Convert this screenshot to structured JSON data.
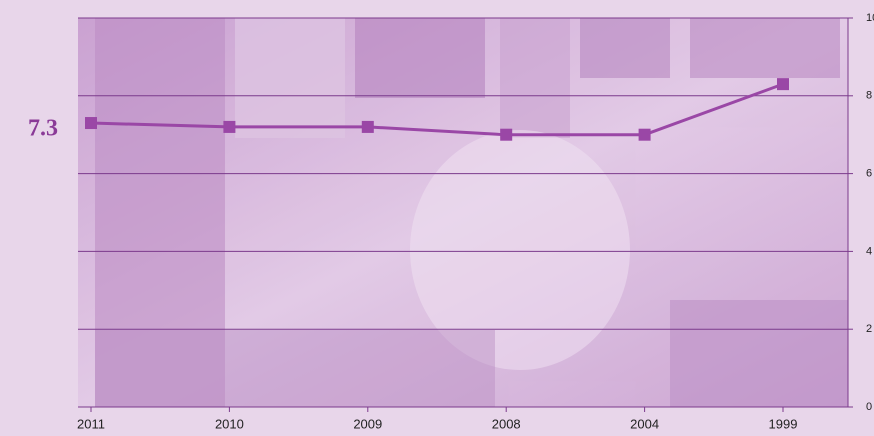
{
  "chart_data": {
    "type": "line",
    "annotation": "7.3",
    "categories": [
      "2011",
      "2010",
      "2009",
      "2008",
      "2004",
      "1999"
    ],
    "series": [
      {
        "color": "#9a47a6",
        "values": [
          7.3,
          7.2,
          7.2,
          7.0,
          7.0,
          8.3
        ]
      }
    ],
    "ylim": [
      0,
      10
    ],
    "yticks": [
      0,
      2,
      4,
      6,
      8,
      10
    ],
    "grid": true
  }
}
